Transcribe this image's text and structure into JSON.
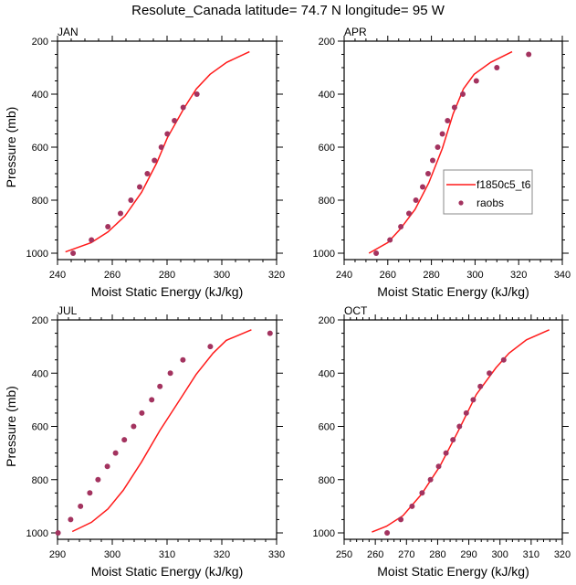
{
  "title": "Resolute_Canada  latitude= 74.7 N longitude= 95 W",
  "colors": {
    "model": "#ff1a1a",
    "obs": "#a3335f",
    "axis": "#000000",
    "legend_border": "#888888"
  },
  "legend": {
    "placement": "APR panel, center-right",
    "entries": [
      {
        "label": "f1850c5_t6",
        "type": "line"
      },
      {
        "label": "raobs",
        "type": "marker"
      }
    ]
  },
  "chart_data": [
    {
      "type": "line",
      "panel": "JAN",
      "xlabel": "Moist Static Energy (kJ/kg)",
      "ylabel": "Pressure (mb)",
      "xlim": [
        240,
        320
      ],
      "ylim": [
        1000,
        200
      ],
      "y_reversed": true,
      "xticks": [
        240,
        260,
        280,
        300,
        320
      ],
      "x_minor_step": 5,
      "yticks": [
        200,
        400,
        600,
        800,
        1000
      ],
      "y_minor_step": 50,
      "series": [
        {
          "name": "f1850c5_t6",
          "type": "line",
          "x": [
            242.9,
            252.3,
            258.4,
            264.6,
            270.7,
            276.2,
            280.1,
            286.1,
            290.7,
            295.7,
            301.8,
            310.1
          ],
          "y": [
            995,
            960,
            920,
            860,
            770,
            660,
            565,
            455,
            380,
            325,
            280,
            240
          ]
        },
        {
          "name": "raobs",
          "type": "scatter",
          "x": [
            245.7,
            252.4,
            258.4,
            263.0,
            266.8,
            270.0,
            272.8,
            275.4,
            277.9,
            280.1,
            282.7,
            285.9,
            290.9
          ],
          "y": [
            1000,
            950,
            900,
            850,
            800,
            750,
            700,
            650,
            600,
            550,
            500,
            450,
            400
          ]
        }
      ]
    },
    {
      "type": "line",
      "panel": "APR",
      "xlabel": "Moist Static Energy (kJ/kg)",
      "ylabel": "",
      "xlim": [
        240,
        340
      ],
      "ylim": [
        1000,
        200
      ],
      "y_reversed": true,
      "xticks": [
        240,
        260,
        280,
        300,
        320,
        340
      ],
      "x_minor_step": 5,
      "yticks": [
        200,
        400,
        600,
        800,
        1000
      ],
      "y_minor_step": 50,
      "series": [
        {
          "name": "f1850c5_t6",
          "type": "line",
          "x": [
            251.4,
            260.0,
            265.6,
            272.5,
            278.8,
            285.0,
            289.9,
            294.7,
            299.6,
            307.2,
            317.0
          ],
          "y": [
            1000,
            960,
            910,
            835,
            735,
            605,
            475,
            380,
            325,
            280,
            240
          ]
        },
        {
          "name": "raobs",
          "type": "scatter",
          "x": [
            254.7,
            261.0,
            266.0,
            269.7,
            272.9,
            276.0,
            278.5,
            280.6,
            282.9,
            285.0,
            287.4,
            290.6,
            294.4,
            300.6,
            310.0,
            324.6
          ],
          "y": [
            1000,
            950,
            900,
            850,
            800,
            750,
            700,
            650,
            600,
            550,
            500,
            450,
            400,
            350,
            300,
            250
          ]
        }
      ]
    },
    {
      "type": "line",
      "panel": "JUL",
      "xlabel": "Moist Static Energy (kJ/kg)",
      "ylabel": "Pressure (mb)",
      "xlim": [
        290,
        330
      ],
      "ylim": [
        1000,
        200
      ],
      "y_reversed": true,
      "xticks": [
        290,
        300,
        310,
        320,
        330
      ],
      "x_minor_step": 2,
      "yticks": [
        200,
        400,
        600,
        800,
        1000
      ],
      "y_minor_step": 50,
      "series": [
        {
          "name": "f1850c5_t6",
          "type": "line",
          "x": [
            292.7,
            296.2,
            299.2,
            302.0,
            305.3,
            308.7,
            312.8,
            315.3,
            318.4,
            320.8,
            325.4
          ],
          "y": [
            995,
            960,
            910,
            840,
            735,
            615,
            485,
            405,
            325,
            277,
            237
          ]
        },
        {
          "name": "raobs",
          "type": "scatter",
          "x": [
            290.1,
            292.4,
            294.2,
            295.9,
            297.4,
            299.1,
            300.6,
            302.2,
            303.9,
            305.4,
            307.2,
            308.7,
            310.6,
            312.9,
            317.9,
            328.8
          ],
          "y": [
            1000,
            950,
            900,
            850,
            800,
            750,
            700,
            650,
            600,
            550,
            500,
            450,
            400,
            350,
            300,
            250
          ]
        }
      ]
    },
    {
      "type": "line",
      "panel": "OCT",
      "xlabel": "Moist Static Energy (kJ/kg)",
      "ylabel": "",
      "xlim": [
        250,
        320
      ],
      "ylim": [
        1000,
        200
      ],
      "y_reversed": true,
      "xticks": [
        250,
        260,
        270,
        280,
        290,
        300,
        310,
        320
      ],
      "x_minor_step": 2,
      "yticks": [
        200,
        400,
        600,
        800,
        1000
      ],
      "y_minor_step": 50,
      "series": [
        {
          "name": "f1850c5_t6",
          "type": "line",
          "x": [
            258.9,
            263.6,
            268.9,
            274.8,
            280.7,
            286.5,
            292.4,
            298.7,
            302.9,
            308.5,
            315.8
          ],
          "y": [
            997,
            975,
            935,
            855,
            750,
            620,
            480,
            380,
            325,
            275,
            237
          ]
        },
        {
          "name": "raobs",
          "type": "scatter",
          "x": [
            263.8,
            268.2,
            271.8,
            275.0,
            277.7,
            280.3,
            282.7,
            284.9,
            287.0,
            289.2,
            291.4,
            293.7,
            296.6,
            301.2
          ],
          "y": [
            1000,
            950,
            900,
            850,
            800,
            750,
            700,
            650,
            600,
            550,
            500,
            450,
            400,
            350
          ]
        }
      ]
    }
  ]
}
